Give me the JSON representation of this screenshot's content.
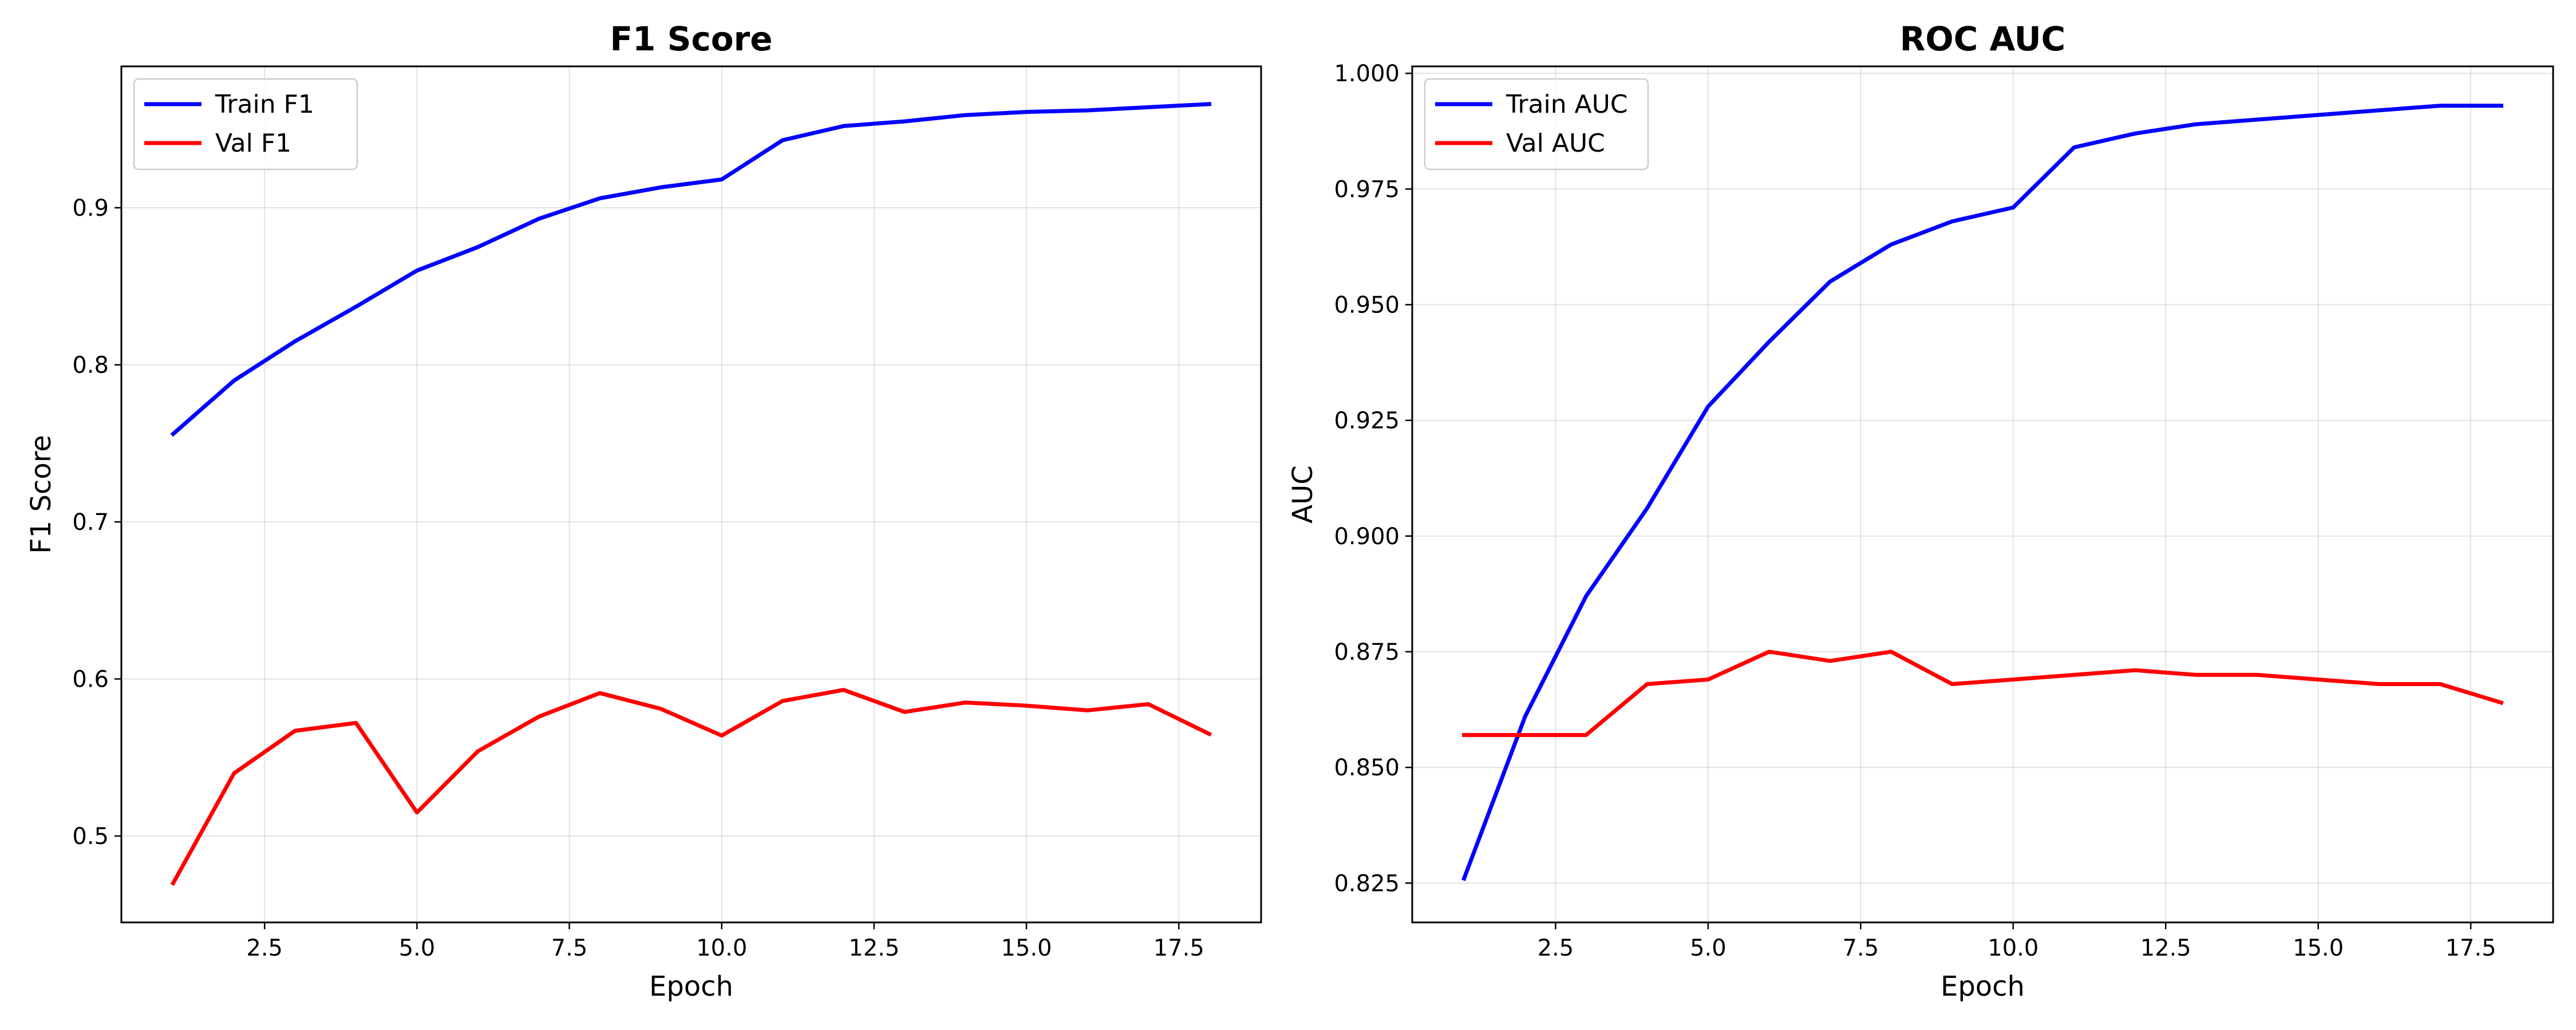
{
  "chart_data": [
    {
      "type": "line",
      "title": "F1 Score",
      "xlabel": "Epoch",
      "ylabel": "F1 Score",
      "xlim": [
        0.15,
        18.85
      ],
      "ylim": [
        0.445,
        0.99
      ],
      "xticks": [
        2.5,
        5.0,
        7.5,
        10.0,
        12.5,
        15.0,
        17.5
      ],
      "xtick_labels": [
        "2.5",
        "5.0",
        "7.5",
        "10.0",
        "12.5",
        "15.0",
        "17.5"
      ],
      "yticks": [
        0.5,
        0.6,
        0.7,
        0.8,
        0.9
      ],
      "ytick_labels": [
        "0.5",
        "0.6",
        "0.7",
        "0.8",
        "0.9"
      ],
      "grid": true,
      "legend_position": "top-left",
      "x": [
        1,
        2,
        3,
        4,
        5,
        6,
        7,
        8,
        9,
        10,
        11,
        12,
        13,
        14,
        15,
        16,
        17,
        18
      ],
      "series": [
        {
          "name": "Train F1",
          "color": "#0000ff",
          "values": [
            0.756,
            0.79,
            0.815,
            0.837,
            0.86,
            0.875,
            0.893,
            0.906,
            0.913,
            0.918,
            0.943,
            0.952,
            0.955,
            0.959,
            0.961,
            0.962,
            0.964,
            0.966
          ]
        },
        {
          "name": "Val F1",
          "color": "#ff0000",
          "values": [
            0.47,
            0.54,
            0.567,
            0.572,
            0.515,
            0.554,
            0.576,
            0.591,
            0.581,
            0.564,
            0.586,
            0.593,
            0.579,
            0.585,
            0.583,
            0.58,
            0.584,
            0.565
          ]
        }
      ]
    },
    {
      "type": "line",
      "title": "ROC AUC",
      "xlabel": "Epoch",
      "ylabel": "AUC",
      "xlim": [
        0.15,
        18.85
      ],
      "ylim": [
        0.8165,
        1.0015
      ],
      "xticks": [
        2.5,
        5.0,
        7.5,
        10.0,
        12.5,
        15.0,
        17.5
      ],
      "xtick_labels": [
        "2.5",
        "5.0",
        "7.5",
        "10.0",
        "12.5",
        "15.0",
        "17.5"
      ],
      "yticks": [
        0.825,
        0.85,
        0.875,
        0.9,
        0.925,
        0.95,
        0.975,
        1.0
      ],
      "ytick_labels": [
        "0.825",
        "0.850",
        "0.875",
        "0.900",
        "0.925",
        "0.950",
        "0.975",
        "1.000"
      ],
      "grid": true,
      "legend_position": "top-left",
      "x": [
        1,
        2,
        3,
        4,
        5,
        6,
        7,
        8,
        9,
        10,
        11,
        12,
        13,
        14,
        15,
        16,
        17,
        18
      ],
      "series": [
        {
          "name": "Train AUC",
          "color": "#0000ff",
          "values": [
            0.826,
            0.861,
            0.887,
            0.906,
            0.928,
            0.942,
            0.955,
            0.963,
            0.968,
            0.971,
            0.984,
            0.987,
            0.989,
            0.99,
            0.991,
            0.992,
            0.993,
            0.993
          ]
        },
        {
          "name": "Val AUC",
          "color": "#ff0000",
          "values": [
            0.857,
            0.857,
            0.857,
            0.868,
            0.869,
            0.875,
            0.873,
            0.875,
            0.868,
            0.869,
            0.87,
            0.871,
            0.87,
            0.87,
            0.869,
            0.868,
            0.868,
            0.864
          ]
        }
      ]
    }
  ]
}
